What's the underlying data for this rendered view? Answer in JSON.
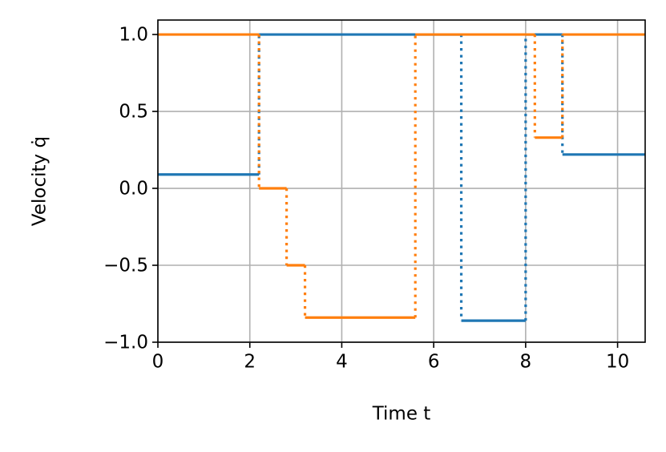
{
  "chart_data": {
    "type": "step",
    "x_label": "Time t",
    "y_label": "Velocity q̇",
    "xlim": [
      0,
      10.6
    ],
    "ylim": [
      -1.0,
      1.094
    ],
    "xticks": [
      0,
      2,
      4,
      6,
      8,
      10
    ],
    "yticks": [
      {
        "value": -1.0,
        "label": "−1.0"
      },
      {
        "value": -0.5,
        "label": "−0.5"
      },
      {
        "value": 0.0,
        "label": "0.0"
      },
      {
        "value": 0.5,
        "label": "0.5"
      },
      {
        "value": 1.0,
        "label": "1.0"
      }
    ],
    "grid": true,
    "series": [
      {
        "color": "#1f77b4",
        "x": [
          0,
          2.2,
          6.6,
          8.0,
          8.8
        ],
        "values": [
          0.09,
          1.0,
          -0.86,
          1.0,
          0.22
        ]
      },
      {
        "color": "#ff7f0e",
        "x": [
          0,
          2.2,
          2.8,
          3.2,
          5.6,
          8.2,
          8.8
        ],
        "values": [
          1.0,
          0.0,
          -0.5,
          -0.84,
          1.0,
          0.33,
          1.0
        ]
      }
    ]
  }
}
